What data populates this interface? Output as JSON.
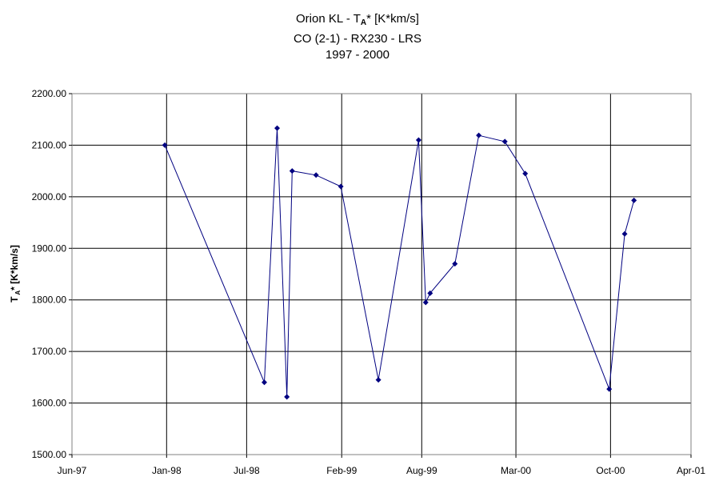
{
  "title": {
    "line1_prefix": "Orion KL - T",
    "line1_sub": "A",
    "line1_suffix": "* [K*km/s]",
    "line2": "CO (2-1) - RX230 - LRS",
    "line3": "1997 - 2000"
  },
  "chart_data": {
    "type": "line",
    "title": "Orion KL - T A* [K*km/s] / CO (2-1) - RX230 - LRS / 1997 - 2000",
    "ylabel": "T A* [K*km/s]",
    "xlabel": "",
    "ylim": [
      1500,
      2200
    ],
    "yticks": [
      "1500.00",
      "1600.00",
      "1700.00",
      "1800.00",
      "1900.00",
      "2000.00",
      "2100.00",
      "2200.00"
    ],
    "xlim": [
      "1997-06-01",
      "2001-04-01"
    ],
    "xticks": [
      {
        "date": "1997-06-01",
        "label": "Jun-97"
      },
      {
        "date": "1998-01-01",
        "label": "Jan-98"
      },
      {
        "date": "1998-07-01",
        "label": "Jul-98"
      },
      {
        "date": "1999-02-01",
        "label": "Feb-99"
      },
      {
        "date": "1999-08-01",
        "label": "Aug-99"
      },
      {
        "date": "2000-03-01",
        "label": "Mar-00"
      },
      {
        "date": "2000-10-01",
        "label": "Oct-00"
      },
      {
        "date": "2001-04-01",
        "label": "Apr-01"
      }
    ],
    "grid": true,
    "legend": "none",
    "series_color": "#000080",
    "x": [
      "1997-12-28",
      "1998-08-10",
      "1998-09-08",
      "1998-09-30",
      "1998-10-12",
      "1998-12-05",
      "1999-01-30",
      "1999-04-25",
      "1999-07-25",
      "1999-08-10",
      "1999-08-20",
      "1999-10-15",
      "1999-12-08",
      "2000-02-05",
      "2000-03-22",
      "2000-09-28",
      "2000-11-02",
      "2000-11-23"
    ],
    "y": [
      2100,
      1640,
      2133,
      1612,
      2050,
      2042,
      2020,
      1645,
      2110,
      1795,
      1813,
      1870,
      2119,
      2107,
      2045,
      1627,
      1928,
      1993
    ]
  }
}
